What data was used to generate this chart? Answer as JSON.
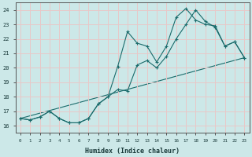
{
  "xlabel": "Humidex (Indice chaleur)",
  "bg_color": "#cce8e8",
  "line_color": "#1a6b6b",
  "grid_color": "#e8c8c8",
  "xlim": [
    -0.5,
    23.5
  ],
  "ylim": [
    15.5,
    24.5
  ],
  "xticks": [
    0,
    1,
    2,
    3,
    4,
    5,
    6,
    7,
    8,
    9,
    10,
    11,
    12,
    13,
    14,
    15,
    16,
    17,
    18,
    19,
    20,
    21,
    22,
    23
  ],
  "yticks": [
    16,
    17,
    18,
    19,
    20,
    21,
    22,
    23,
    24
  ],
  "line1_x": [
    0,
    1,
    2,
    3,
    4,
    5,
    6,
    7,
    8,
    9,
    10,
    11,
    12,
    13,
    14,
    15,
    16,
    17,
    18,
    19,
    20,
    21,
    22,
    23
  ],
  "line1_y": [
    16.5,
    16.4,
    16.6,
    17.0,
    16.5,
    16.2,
    16.2,
    16.5,
    17.5,
    18.0,
    20.1,
    22.5,
    21.7,
    21.5,
    20.4,
    21.5,
    23.5,
    24.1,
    23.3,
    23.0,
    22.9,
    21.5,
    21.8,
    20.7
  ],
  "line2_x": [
    0,
    1,
    2,
    3,
    4,
    5,
    6,
    7,
    8,
    9,
    10,
    11,
    12,
    13,
    14,
    15,
    16,
    17,
    18,
    19,
    20,
    21,
    22,
    23
  ],
  "line2_y": [
    16.5,
    16.4,
    16.6,
    17.0,
    16.5,
    16.2,
    16.2,
    16.5,
    17.5,
    18.0,
    18.5,
    18.4,
    20.2,
    20.5,
    20.0,
    20.8,
    22.0,
    23.0,
    24.0,
    23.2,
    22.8,
    21.5,
    21.8,
    20.7
  ],
  "line3_x": [
    0,
    23
  ],
  "line3_y": [
    16.5,
    20.7
  ]
}
